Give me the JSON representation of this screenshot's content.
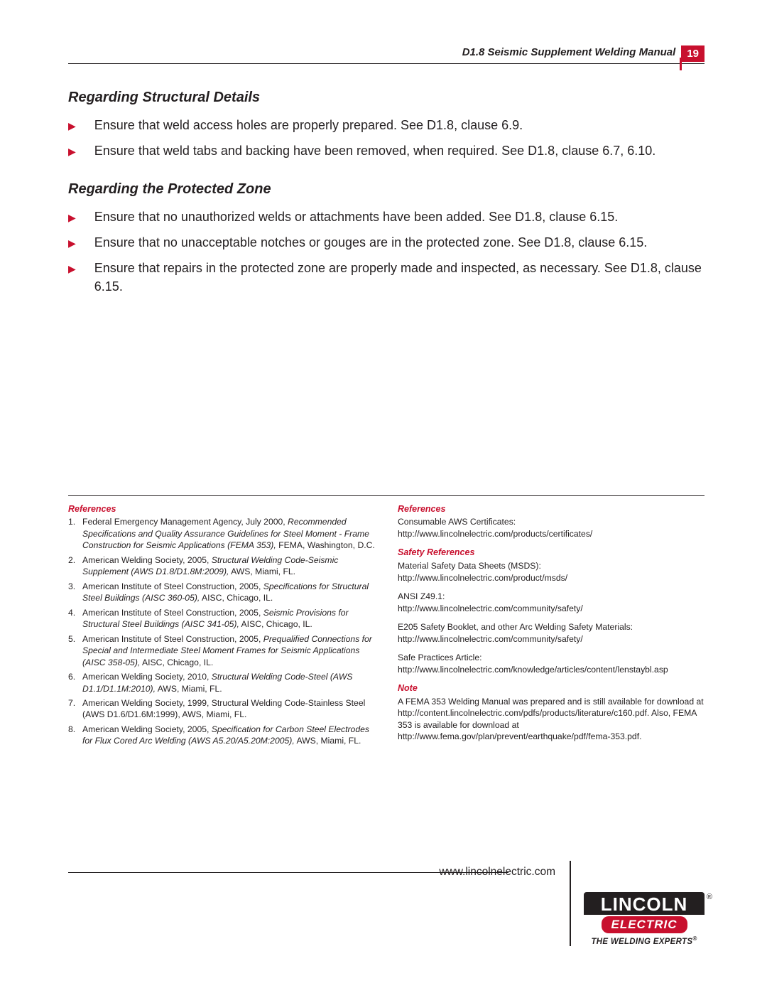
{
  "header": {
    "title": "D1.8 Seismic Supplement Welding Manual",
    "page_number": "19"
  },
  "sections": [
    {
      "heading": "Regarding Structural Details",
      "items": [
        "Ensure that weld access holes are properly prepared. See D1.8, clause 6.9.",
        "Ensure that weld tabs and backing have been removed, when required. See D1.8, clause 6.7, 6.10."
      ]
    },
    {
      "heading": "Regarding the Protected Zone",
      "items": [
        "Ensure that no unauthorized welds or attachments have been added. See D1.8, clause 6.15.",
        "Ensure that no unacceptable notches or gouges are in the protected zone. See D1.8, clause 6.15.",
        "Ensure that repairs in the protected zone are properly made and inspected, as necessary. See D1.8, clause 6.15."
      ]
    }
  ],
  "left_refs": {
    "heading": "References",
    "items": [
      {
        "pre": "Federal Emergency Management Agency, July 2000, ",
        "ital": "Recommended Specifications and Quality Assurance Guidelines for Steel Moment - Frame Construction for Seismic Applications (FEMA 353),",
        "post": " FEMA, Washington, D.C."
      },
      {
        "pre": "American Welding Society, 2005, ",
        "ital": "Structural Welding Code-Seismic Supplement (AWS D1.8/D1.8M:2009),",
        "post": " AWS, Miami, FL."
      },
      {
        "pre": "American Institute of Steel Construction, 2005, ",
        "ital": "Specifications for Structural Steel Buildings (AISC 360-05),",
        "post": " AISC, Chicago, IL."
      },
      {
        "pre": "American Institute of Steel Construction, 2005, ",
        "ital": "Seismic Provisions for Structural Steel Buildings (AISC 341-05),",
        "post": " AISC, Chicago, IL."
      },
      {
        "pre": "American Institute of Steel Construction, 2005, ",
        "ital": "Prequalified Connections for Special and Intermediate Steel Moment Frames for Seismic Applications (AISC 358-05),",
        "post": " AISC, Chicago, IL."
      },
      {
        "pre": "American Welding Society, 2010, ",
        "ital": "Structural Welding Code-Steel (AWS D1.1/D1.1M:2010),",
        "post": " AWS, Miami, FL."
      },
      {
        "pre": "American Welding Society, 1999, Structural Welding Code-Stainless Steel (AWS D1.6/D1.6M:1999), AWS, Miami, FL.",
        "ital": "",
        "post": ""
      },
      {
        "pre": "American Welding Society, 2005, ",
        "ital": "Specification for Carbon Steel Electrodes for Flux Cored Arc Welding (AWS A5.20/A5.20M:2005),",
        "post": " AWS, Miami, FL."
      }
    ]
  },
  "right_refs": {
    "heading1": "References",
    "block1_label": "Consumable AWS Certificates:",
    "block1_url": "http://www.lincolnelectric.com/products/certificates/",
    "heading2": "Safety References",
    "block2_label": "Material Safety Data Sheets (MSDS):",
    "block2_url": "http://www.lincolnelectric.com/product/msds/",
    "block3_label": "ANSI Z49.1:",
    "block3_url": "http://www.lincolnelectric.com/community/safety/",
    "block4_label": "E205 Safety Booklet, and other Arc Welding Safety Materials:",
    "block4_url": "http://www.lincolnelectric.com/community/safety/",
    "block5_label": "Safe Practices Article:",
    "block5_url": "http://www.lincolnelectric.com/knowledge/articles/content/lenstaybl.asp",
    "heading3": "Note",
    "note_text": "A FEMA 353 Welding Manual was prepared and is still available for download at http://content.lincolnelectric.com/pdfs/products/literature/c160.pdf. Also, FEMA 353 is available for download at http://www.fema.gov/plan/prevent/earthquake/pdf/fema-353.pdf."
  },
  "footer": {
    "url": "www.lincolnelectric.com",
    "logo_top": "LINCOLN",
    "logo_mid": "ELECTRIC",
    "logo_tag": "THE WELDING EXPERTS"
  },
  "colors": {
    "accent": "#c8102e",
    "text": "#231f20",
    "bg": "#ffffff"
  }
}
